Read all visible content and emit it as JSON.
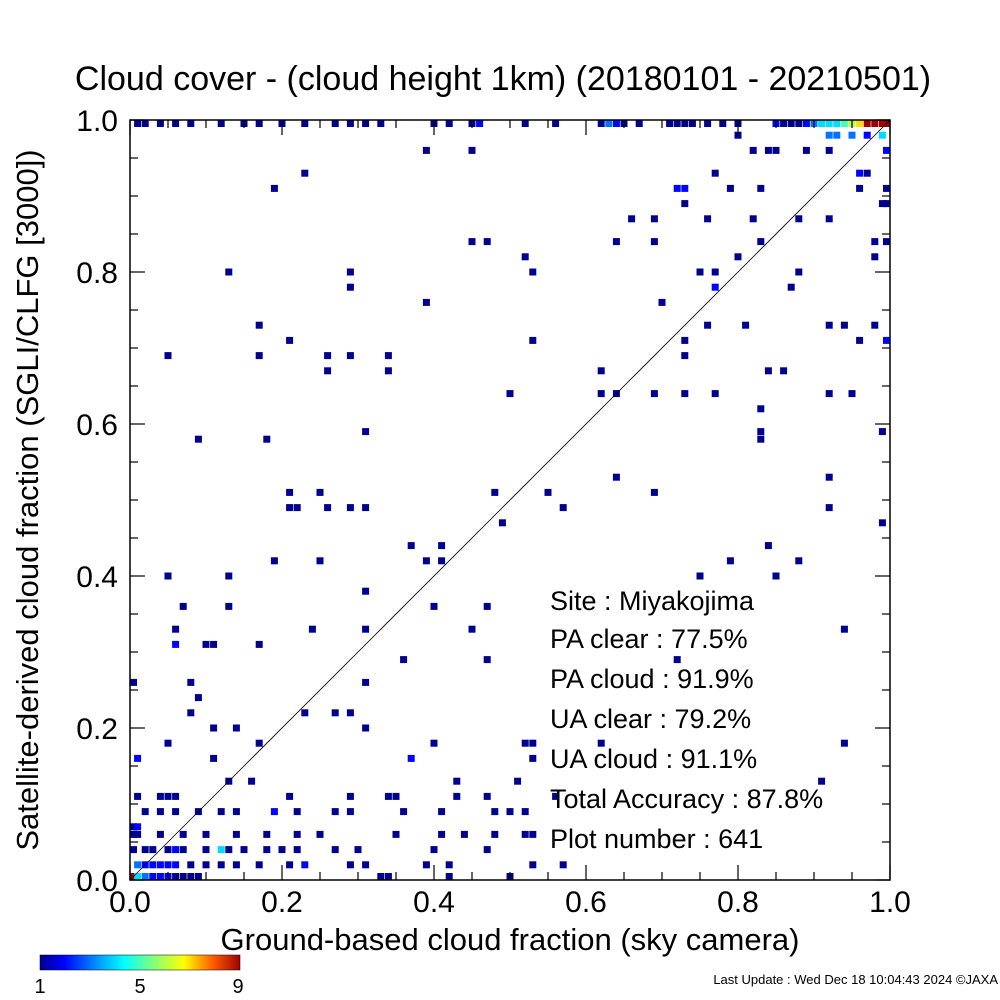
{
  "chart_data": {
    "type": "heatmap",
    "title": "Cloud cover - (cloud height 1km)  (20180101 - 20210501)",
    "xlabel": "Ground-based cloud fraction (sky camera)",
    "ylabel": "Satellite-derived cloud fraction (SGLI/CLFG [3000])",
    "xlim": [
      0.0,
      1.0
    ],
    "ylim": [
      0.0,
      1.0
    ],
    "xticks": [
      "0.0",
      "0.2",
      "0.4",
      "0.6",
      "0.8",
      "1.0"
    ],
    "yticks": [
      "0.0",
      "0.2",
      "0.4",
      "0.6",
      "0.8",
      "1.0"
    ],
    "reference_line": "y = x",
    "grid": false,
    "colorbar": {
      "min": 1,
      "max": 9,
      "ticks": [
        "1",
        "5",
        "9"
      ],
      "colormap": "rainbow"
    },
    "stats": [
      {
        "label": "Site : Miyakojima"
      },
      {
        "label": "PA clear :  77.5%"
      },
      {
        "label": "PA cloud :  91.9%"
      },
      {
        "label": "UA clear :  79.2%"
      },
      {
        "label": "UA cloud :  91.1%"
      },
      {
        "label": "Total Accuracy :  87.8%"
      },
      {
        "label": "Plot number :       641"
      }
    ],
    "footer": "Last Update : Wed Dec 18 10:04:43 2024  ©JAXA",
    "points": [
      [
        0.0,
        0.0,
        9
      ],
      [
        0.01,
        0.0,
        4
      ],
      [
        0.02,
        0.0,
        3
      ],
      [
        0.03,
        0.0,
        2
      ],
      [
        0.04,
        0.0,
        2
      ],
      [
        0.05,
        0.0,
        2
      ],
      [
        0.06,
        0.0,
        1
      ],
      [
        0.07,
        0.0,
        1
      ],
      [
        0.08,
        0.0,
        1
      ],
      [
        0.09,
        0.0,
        1
      ],
      [
        0.33,
        0.0,
        1
      ],
      [
        0.34,
        0.0,
        1
      ],
      [
        0.42,
        0.0,
        1
      ],
      [
        0.5,
        0.0,
        1
      ],
      [
        0.01,
        0.02,
        3
      ],
      [
        0.02,
        0.02,
        2
      ],
      [
        0.03,
        0.02,
        2
      ],
      [
        0.04,
        0.02,
        2
      ],
      [
        0.05,
        0.02,
        2
      ],
      [
        0.06,
        0.02,
        2
      ],
      [
        0.08,
        0.02,
        1
      ],
      [
        0.1,
        0.02,
        1
      ],
      [
        0.12,
        0.02,
        1
      ],
      [
        0.14,
        0.02,
        1
      ],
      [
        0.17,
        0.02,
        1
      ],
      [
        0.21,
        0.02,
        1
      ],
      [
        0.23,
        0.02,
        2
      ],
      [
        0.29,
        0.02,
        1
      ],
      [
        0.31,
        0.02,
        1
      ],
      [
        0.39,
        0.02,
        1
      ],
      [
        0.42,
        0.02,
        1
      ],
      [
        0.53,
        0.02,
        1
      ],
      [
        0.57,
        0.02,
        1
      ],
      [
        0.0,
        0.04,
        1
      ],
      [
        0.02,
        0.04,
        1
      ],
      [
        0.03,
        0.04,
        1
      ],
      [
        0.05,
        0.04,
        1
      ],
      [
        0.06,
        0.04,
        2
      ],
      [
        0.07,
        0.04,
        1
      ],
      [
        0.1,
        0.04,
        1
      ],
      [
        0.12,
        0.04,
        4
      ],
      [
        0.13,
        0.04,
        1
      ],
      [
        0.15,
        0.04,
        1
      ],
      [
        0.18,
        0.04,
        1
      ],
      [
        0.2,
        0.04,
        1
      ],
      [
        0.22,
        0.04,
        1
      ],
      [
        0.27,
        0.04,
        1
      ],
      [
        0.3,
        0.04,
        1
      ],
      [
        0.4,
        0.04,
        1
      ],
      [
        0.47,
        0.04,
        1
      ],
      [
        0.0,
        0.06,
        1
      ],
      [
        0.01,
        0.06,
        1
      ],
      [
        0.04,
        0.06,
        1
      ],
      [
        0.07,
        0.06,
        1
      ],
      [
        0.1,
        0.06,
        1
      ],
      [
        0.14,
        0.06,
        1
      ],
      [
        0.18,
        0.06,
        1
      ],
      [
        0.22,
        0.06,
        1
      ],
      [
        0.25,
        0.06,
        1
      ],
      [
        0.35,
        0.06,
        1
      ],
      [
        0.41,
        0.06,
        1
      ],
      [
        0.44,
        0.06,
        1
      ],
      [
        0.48,
        0.06,
        1
      ],
      [
        0.52,
        0.06,
        1
      ],
      [
        0.53,
        0.06,
        1
      ],
      [
        0.0,
        0.07,
        1
      ],
      [
        0.01,
        0.07,
        2
      ],
      [
        0.02,
        0.09,
        1
      ],
      [
        0.04,
        0.09,
        1
      ],
      [
        0.06,
        0.09,
        1
      ],
      [
        0.09,
        0.09,
        1
      ],
      [
        0.12,
        0.09,
        1
      ],
      [
        0.14,
        0.09,
        1
      ],
      [
        0.19,
        0.09,
        2
      ],
      [
        0.22,
        0.09,
        1
      ],
      [
        0.27,
        0.09,
        1
      ],
      [
        0.29,
        0.09,
        1
      ],
      [
        0.36,
        0.09,
        1
      ],
      [
        0.41,
        0.09,
        1
      ],
      [
        0.48,
        0.09,
        1
      ],
      [
        0.5,
        0.09,
        1
      ],
      [
        0.52,
        0.09,
        1
      ],
      [
        0.01,
        0.11,
        1
      ],
      [
        0.04,
        0.11,
        1
      ],
      [
        0.05,
        0.11,
        1
      ],
      [
        0.06,
        0.11,
        1
      ],
      [
        0.21,
        0.11,
        1
      ],
      [
        0.29,
        0.11,
        1
      ],
      [
        0.34,
        0.11,
        1
      ],
      [
        0.35,
        0.11,
        1
      ],
      [
        0.43,
        0.11,
        1
      ],
      [
        0.47,
        0.11,
        1
      ],
      [
        0.56,
        0.11,
        1
      ],
      [
        0.13,
        0.13,
        1
      ],
      [
        0.16,
        0.13,
        1
      ],
      [
        0.43,
        0.13,
        1
      ],
      [
        0.51,
        0.13,
        1
      ],
      [
        0.91,
        0.13,
        1
      ],
      [
        0.01,
        0.16,
        2
      ],
      [
        0.11,
        0.16,
        1
      ],
      [
        0.37,
        0.16,
        2
      ],
      [
        0.53,
        0.16,
        1
      ],
      [
        0.05,
        0.18,
        1
      ],
      [
        0.17,
        0.18,
        1
      ],
      [
        0.4,
        0.18,
        1
      ],
      [
        0.52,
        0.18,
        1
      ],
      [
        0.53,
        0.18,
        1
      ],
      [
        0.62,
        0.18,
        1
      ],
      [
        0.94,
        0.18,
        1
      ],
      [
        0.11,
        0.2,
        1
      ],
      [
        0.14,
        0.2,
        1
      ],
      [
        0.31,
        0.2,
        1
      ],
      [
        0.08,
        0.22,
        1
      ],
      [
        0.23,
        0.22,
        1
      ],
      [
        0.27,
        0.22,
        1
      ],
      [
        0.29,
        0.22,
        1
      ],
      [
        0.09,
        0.24,
        1
      ],
      [
        0.0,
        0.26,
        1
      ],
      [
        0.08,
        0.26,
        1
      ],
      [
        0.31,
        0.26,
        1
      ],
      [
        0.36,
        0.29,
        1
      ],
      [
        0.47,
        0.29,
        1
      ],
      [
        0.72,
        0.29,
        1
      ],
      [
        0.06,
        0.31,
        2
      ],
      [
        0.1,
        0.31,
        1
      ],
      [
        0.11,
        0.31,
        1
      ],
      [
        0.17,
        0.31,
        1
      ],
      [
        0.06,
        0.33,
        1
      ],
      [
        0.24,
        0.33,
        1
      ],
      [
        0.31,
        0.33,
        1
      ],
      [
        0.45,
        0.33,
        1
      ],
      [
        0.94,
        0.33,
        1
      ],
      [
        0.07,
        0.36,
        1
      ],
      [
        0.13,
        0.36,
        1
      ],
      [
        0.4,
        0.36,
        1
      ],
      [
        0.47,
        0.36,
        1
      ],
      [
        0.31,
        0.38,
        1
      ],
      [
        0.05,
        0.4,
        1
      ],
      [
        0.13,
        0.4,
        1
      ],
      [
        0.75,
        0.4,
        1
      ],
      [
        0.85,
        0.4,
        1
      ],
      [
        0.19,
        0.42,
        1
      ],
      [
        0.25,
        0.42,
        1
      ],
      [
        0.39,
        0.42,
        1
      ],
      [
        0.41,
        0.42,
        1
      ],
      [
        0.79,
        0.42,
        1
      ],
      [
        0.88,
        0.42,
        1
      ],
      [
        0.37,
        0.44,
        1
      ],
      [
        0.41,
        0.44,
        1
      ],
      [
        0.84,
        0.44,
        1
      ],
      [
        0.49,
        0.47,
        1
      ],
      [
        0.99,
        0.47,
        1
      ],
      [
        0.21,
        0.49,
        1
      ],
      [
        0.22,
        0.49,
        1
      ],
      [
        0.26,
        0.49,
        1
      ],
      [
        0.29,
        0.49,
        1
      ],
      [
        0.31,
        0.49,
        1
      ],
      [
        0.57,
        0.49,
        1
      ],
      [
        0.92,
        0.49,
        1
      ],
      [
        0.21,
        0.51,
        1
      ],
      [
        0.25,
        0.51,
        1
      ],
      [
        0.48,
        0.51,
        1
      ],
      [
        0.55,
        0.51,
        1
      ],
      [
        0.69,
        0.51,
        1
      ],
      [
        0.64,
        0.53,
        1
      ],
      [
        0.92,
        0.53,
        1
      ],
      [
        0.09,
        0.58,
        1
      ],
      [
        0.18,
        0.58,
        1
      ],
      [
        0.83,
        0.58,
        1
      ],
      [
        0.31,
        0.59,
        1
      ],
      [
        0.83,
        0.59,
        1
      ],
      [
        0.99,
        0.59,
        1
      ],
      [
        0.5,
        0.64,
        1
      ],
      [
        0.62,
        0.64,
        1
      ],
      [
        0.64,
        0.64,
        1
      ],
      [
        0.69,
        0.64,
        1
      ],
      [
        0.73,
        0.64,
        1
      ],
      [
        0.77,
        0.64,
        1
      ],
      [
        0.92,
        0.64,
        1
      ],
      [
        0.95,
        0.64,
        1
      ],
      [
        0.83,
        0.62,
        1
      ],
      [
        0.26,
        0.67,
        1
      ],
      [
        0.34,
        0.67,
        1
      ],
      [
        0.62,
        0.67,
        1
      ],
      [
        0.84,
        0.67,
        1
      ],
      [
        0.86,
        0.67,
        1
      ],
      [
        0.05,
        0.69,
        1
      ],
      [
        0.17,
        0.69,
        1
      ],
      [
        0.26,
        0.69,
        1
      ],
      [
        0.29,
        0.69,
        1
      ],
      [
        0.34,
        0.69,
        1
      ],
      [
        0.73,
        0.69,
        1
      ],
      [
        0.21,
        0.71,
        1
      ],
      [
        0.53,
        0.71,
        1
      ],
      [
        0.73,
        0.71,
        1
      ],
      [
        0.96,
        0.71,
        1
      ],
      [
        1.0,
        0.71,
        2
      ],
      [
        0.17,
        0.73,
        1
      ],
      [
        0.76,
        0.73,
        1
      ],
      [
        0.81,
        0.73,
        1
      ],
      [
        0.92,
        0.73,
        1
      ],
      [
        0.94,
        0.73,
        1
      ],
      [
        0.98,
        0.73,
        1
      ],
      [
        0.39,
        0.76,
        1
      ],
      [
        0.7,
        0.76,
        1
      ],
      [
        0.29,
        0.78,
        1
      ],
      [
        0.77,
        0.78,
        2
      ],
      [
        0.87,
        0.78,
        1
      ],
      [
        0.13,
        0.8,
        1
      ],
      [
        0.29,
        0.8,
        1
      ],
      [
        0.53,
        0.8,
        1
      ],
      [
        0.75,
        0.8,
        1
      ],
      [
        0.77,
        0.8,
        1
      ],
      [
        0.88,
        0.8,
        1
      ],
      [
        0.52,
        0.82,
        1
      ],
      [
        0.8,
        0.82,
        1
      ],
      [
        0.98,
        0.82,
        1
      ],
      [
        0.45,
        0.84,
        1
      ],
      [
        0.47,
        0.84,
        1
      ],
      [
        0.64,
        0.84,
        1
      ],
      [
        0.69,
        0.84,
        1
      ],
      [
        0.83,
        0.84,
        1
      ],
      [
        0.98,
        0.84,
        1
      ],
      [
        1.0,
        0.84,
        1
      ],
      [
        0.66,
        0.87,
        1
      ],
      [
        0.69,
        0.87,
        1
      ],
      [
        0.76,
        0.87,
        1
      ],
      [
        0.82,
        0.87,
        1
      ],
      [
        0.88,
        0.87,
        1
      ],
      [
        0.92,
        0.87,
        1
      ],
      [
        0.73,
        0.89,
        1
      ],
      [
        0.99,
        0.89,
        1
      ],
      [
        1.0,
        0.89,
        1
      ],
      [
        0.72,
        0.91,
        2
      ],
      [
        0.73,
        0.91,
        2
      ],
      [
        0.79,
        0.91,
        1
      ],
      [
        0.83,
        0.91,
        1
      ],
      [
        0.96,
        0.91,
        1
      ],
      [
        1.0,
        0.91,
        1
      ],
      [
        0.19,
        0.91,
        1
      ],
      [
        0.23,
        0.93,
        1
      ],
      [
        0.77,
        0.93,
        1
      ],
      [
        0.96,
        0.93,
        2
      ],
      [
        0.97,
        0.93,
        1
      ],
      [
        0.39,
        0.96,
        1
      ],
      [
        0.45,
        0.96,
        1
      ],
      [
        0.82,
        0.96,
        1
      ],
      [
        0.84,
        0.96,
        1
      ],
      [
        0.85,
        0.96,
        1
      ],
      [
        0.89,
        0.96,
        1
      ],
      [
        0.92,
        0.96,
        1
      ],
      [
        1.0,
        0.96,
        2
      ],
      [
        0.8,
        0.98,
        1
      ],
      [
        0.92,
        0.98,
        3
      ],
      [
        0.93,
        0.98,
        3
      ],
      [
        0.95,
        0.98,
        3
      ],
      [
        0.97,
        0.98,
        2
      ],
      [
        0.99,
        0.98,
        4
      ],
      [
        0.01,
        1.0,
        1
      ],
      [
        0.02,
        1.0,
        1
      ],
      [
        0.04,
        1.0,
        1
      ],
      [
        0.06,
        1.0,
        1
      ],
      [
        0.08,
        1.0,
        1
      ],
      [
        0.12,
        1.0,
        1
      ],
      [
        0.15,
        1.0,
        1
      ],
      [
        0.17,
        1.0,
        1
      ],
      [
        0.2,
        1.0,
        1
      ],
      [
        0.23,
        1.0,
        1
      ],
      [
        0.27,
        1.0,
        1
      ],
      [
        0.29,
        1.0,
        1
      ],
      [
        0.31,
        1.0,
        1
      ],
      [
        0.33,
        1.0,
        1
      ],
      [
        0.4,
        1.0,
        1
      ],
      [
        0.42,
        1.0,
        1
      ],
      [
        0.45,
        1.0,
        1
      ],
      [
        0.46,
        1.0,
        2
      ],
      [
        0.52,
        1.0,
        1
      ],
      [
        0.56,
        1.0,
        1
      ],
      [
        0.62,
        1.0,
        1
      ],
      [
        0.63,
        1.0,
        3
      ],
      [
        0.64,
        1.0,
        2
      ],
      [
        0.65,
        1.0,
        1
      ],
      [
        0.67,
        1.0,
        1
      ],
      [
        0.71,
        1.0,
        1
      ],
      [
        0.72,
        1.0,
        1
      ],
      [
        0.73,
        1.0,
        1
      ],
      [
        0.74,
        1.0,
        1
      ],
      [
        0.76,
        1.0,
        1
      ],
      [
        0.78,
        1.0,
        1
      ],
      [
        0.8,
        1.0,
        1
      ],
      [
        0.85,
        1.0,
        2
      ],
      [
        0.86,
        1.0,
        1
      ],
      [
        0.87,
        1.0,
        1
      ],
      [
        0.88,
        1.0,
        1
      ],
      [
        0.89,
        1.0,
        2
      ],
      [
        0.9,
        1.0,
        3
      ],
      [
        0.91,
        1.0,
        4
      ],
      [
        0.92,
        1.0,
        4
      ],
      [
        0.93,
        1.0,
        4
      ],
      [
        0.94,
        1.0,
        5
      ],
      [
        0.95,
        1.0,
        6
      ],
      [
        0.96,
        1.0,
        7
      ],
      [
        0.97,
        1.0,
        9
      ],
      [
        0.98,
        1.0,
        9
      ],
      [
        0.99,
        1.0,
        9
      ],
      [
        1.0,
        1.0,
        9
      ]
    ]
  }
}
